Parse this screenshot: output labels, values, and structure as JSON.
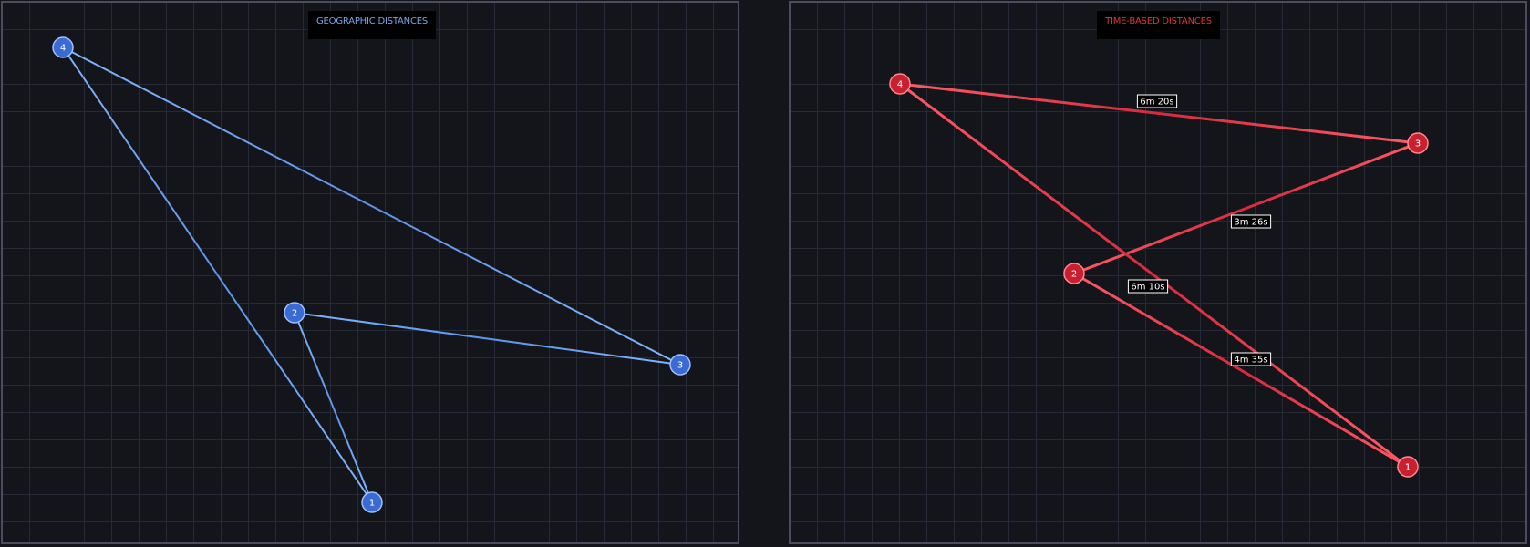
{
  "panels": [
    {
      "id": "geo",
      "title": "GEOGRAPHIC DISTANCES",
      "colors": {
        "node_fill": "#3a6ad4",
        "node_stroke": "#9fc0ff",
        "edge": "#5b93e8",
        "edge_highlight": "#7eb6ff"
      },
      "nodes": [
        {
          "id": "1",
          "label": "1"
        },
        {
          "id": "2",
          "label": "2"
        },
        {
          "id": "3",
          "label": "3"
        },
        {
          "id": "4",
          "label": "4"
        }
      ],
      "edges": [
        {
          "from": "4",
          "to": "1",
          "label": ""
        },
        {
          "from": "4",
          "to": "3",
          "label": ""
        },
        {
          "from": "2",
          "to": "3",
          "label": ""
        },
        {
          "from": "2",
          "to": "1",
          "label": ""
        }
      ]
    },
    {
      "id": "time",
      "title": "TIME-BASED DISTANCES",
      "colors": {
        "node_fill": "#c8202e",
        "node_stroke": "#ff8a92",
        "edge": "#d82a3c",
        "edge_highlight": "#ff5a66"
      },
      "nodes": [
        {
          "id": "1",
          "label": "1"
        },
        {
          "id": "2",
          "label": "2"
        },
        {
          "id": "3",
          "label": "3"
        },
        {
          "id": "4",
          "label": "4"
        }
      ],
      "edges": [
        {
          "from": "4",
          "to": "3",
          "label": "6m 20s"
        },
        {
          "from": "2",
          "to": "3",
          "label": "3m 26s"
        },
        {
          "from": "4",
          "to": "1",
          "label": "6m 10s"
        },
        {
          "from": "2",
          "to": "1",
          "label": "4m 35s"
        }
      ]
    }
  ]
}
